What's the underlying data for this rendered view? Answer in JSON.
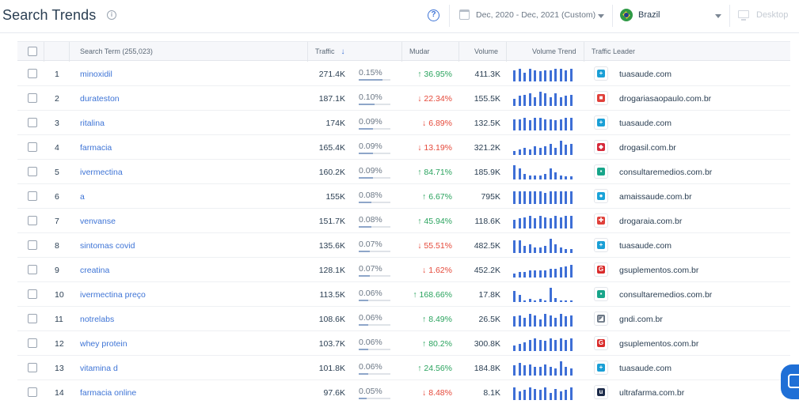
{
  "header": {
    "title": "Search Trends",
    "info_glyph": "i",
    "help_glyph": "?",
    "date_range": "Dec, 2020 - Dec, 2021 (Custom)",
    "country": "Brazil",
    "device": "Desktop"
  },
  "table": {
    "columns": {
      "term": "Search Term (255,023)",
      "traffic": "Traffic",
      "change": "Mudar",
      "volume": "Volume",
      "trend": "Volume Trend",
      "leader": "Traffic Leader"
    },
    "sort_glyph": "↓",
    "rows": [
      {
        "idx": "1",
        "term": "minoxidil",
        "traffic": "271.4K",
        "share": "0.15%",
        "share_frac": 0.75,
        "change": "↑ 36.95%",
        "dir": "up",
        "volume": "411.3K",
        "trend": [
          0.8,
          0.9,
          0.6,
          0.9,
          0.8,
          0.7,
          0.8,
          0.8,
          0.9,
          0.9,
          0.8,
          0.9
        ],
        "leader": "tuasaude.com",
        "leader_color": "#1a9fd6",
        "leader_glyph": "+"
      },
      {
        "idx": "2",
        "term": "durateston",
        "traffic": "187.1K",
        "share": "0.10%",
        "share_frac": 0.5,
        "change": "↓ 22.34%",
        "dir": "down",
        "volume": "155.5K",
        "trend": [
          0.5,
          0.7,
          0.8,
          0.9,
          0.6,
          1.0,
          0.9,
          0.6,
          0.9,
          0.6,
          0.7,
          0.8
        ],
        "leader": "drogariasaopaulo.com.br",
        "leader_color": "#e0403a",
        "leader_glyph": "■"
      },
      {
        "idx": "3",
        "term": "ritalina",
        "traffic": "174K",
        "share": "0.09%",
        "share_frac": 0.45,
        "change": "↓ 6.89%",
        "dir": "down",
        "volume": "132.5K",
        "trend": [
          0.8,
          0.8,
          0.9,
          0.7,
          0.9,
          0.9,
          0.8,
          0.8,
          0.7,
          0.8,
          0.9,
          0.9
        ],
        "leader": "tuasaude.com",
        "leader_color": "#1a9fd6",
        "leader_glyph": "+"
      },
      {
        "idx": "4",
        "term": "farmacia",
        "traffic": "165.4K",
        "share": "0.09%",
        "share_frac": 0.45,
        "change": "↓ 13.19%",
        "dir": "down",
        "volume": "321.2K",
        "trend": [
          0.3,
          0.4,
          0.5,
          0.4,
          0.6,
          0.5,
          0.6,
          0.8,
          0.5,
          1.0,
          0.7,
          0.8
        ],
        "leader": "drogasil.com.br",
        "leader_color": "#d6293a",
        "leader_glyph": "◆"
      },
      {
        "idx": "5",
        "term": "ivermectina",
        "traffic": "160.2K",
        "share": "0.09%",
        "share_frac": 0.45,
        "change": "↑ 84.71%",
        "dir": "up",
        "volume": "185.9K",
        "trend": [
          1.0,
          0.8,
          0.4,
          0.3,
          0.3,
          0.3,
          0.4,
          0.8,
          0.5,
          0.3,
          0.2,
          0.2
        ],
        "leader": "consultaremedios.com.br",
        "leader_color": "#17a58a",
        "leader_glyph": "▪"
      },
      {
        "idx": "6",
        "term": "a",
        "traffic": "155K",
        "share": "0.08%",
        "share_frac": 0.4,
        "change": "↑ 6.67%",
        "dir": "up",
        "volume": "795K",
        "trend": [
          0.9,
          0.9,
          0.9,
          0.9,
          0.9,
          0.9,
          0.8,
          0.9,
          0.9,
          0.9,
          0.9,
          0.9
        ],
        "leader": "amaissaude.com.br",
        "leader_color": "#1aa3d9",
        "leader_glyph": "●"
      },
      {
        "idx": "7",
        "term": "venvanse",
        "traffic": "151.7K",
        "share": "0.08%",
        "share_frac": 0.4,
        "change": "↑ 45.94%",
        "dir": "up",
        "volume": "118.6K",
        "trend": [
          0.6,
          0.7,
          0.8,
          0.9,
          0.7,
          0.9,
          0.8,
          0.7,
          0.9,
          0.8,
          0.9,
          0.9
        ],
        "leader": "drogaraia.com.br",
        "leader_color": "#e0403a",
        "leader_glyph": "✚"
      },
      {
        "idx": "8",
        "term": "sintomas covid",
        "traffic": "135.6K",
        "share": "0.07%",
        "share_frac": 0.35,
        "change": "↓ 55.51%",
        "dir": "down",
        "volume": "482.5K",
        "trend": [
          0.9,
          0.9,
          0.5,
          0.6,
          0.4,
          0.4,
          0.5,
          1.0,
          0.6,
          0.4,
          0.3,
          0.3
        ],
        "leader": "tuasaude.com",
        "leader_color": "#1a9fd6",
        "leader_glyph": "+"
      },
      {
        "idx": "9",
        "term": "creatina",
        "traffic": "128.1K",
        "share": "0.07%",
        "share_frac": 0.35,
        "change": "↓ 1.62%",
        "dir": "down",
        "volume": "452.2K",
        "trend": [
          0.3,
          0.4,
          0.4,
          0.5,
          0.5,
          0.5,
          0.5,
          0.6,
          0.6,
          0.7,
          0.8,
          0.9
        ],
        "leader": "gsuplementos.com.br",
        "leader_color": "#d92a2a",
        "leader_glyph": "G"
      },
      {
        "idx": "10",
        "term": "ivermectina preço",
        "traffic": "113.5K",
        "share": "0.06%",
        "share_frac": 0.3,
        "change": "↑ 168.66%",
        "dir": "up",
        "volume": "17.8K",
        "trend": [
          0.8,
          0.5,
          0.1,
          0.2,
          0.1,
          0.2,
          0.1,
          1.0,
          0.3,
          0.1,
          0.1,
          0.1
        ],
        "leader": "consultaremedios.com.br",
        "leader_color": "#17a58a",
        "leader_glyph": "▪"
      },
      {
        "idx": "11",
        "term": "notrelabs",
        "traffic": "108.6K",
        "share": "0.06%",
        "share_frac": 0.3,
        "change": "↑ 8.49%",
        "dir": "up",
        "volume": "26.5K",
        "trend": [
          0.7,
          0.8,
          0.6,
          0.9,
          0.8,
          0.5,
          0.9,
          0.8,
          0.6,
          0.9,
          0.7,
          0.8
        ],
        "leader": "gndi.com.br",
        "leader_color": "#6b7785",
        "leader_glyph": "◪"
      },
      {
        "idx": "12",
        "term": "whey protein",
        "traffic": "103.7K",
        "share": "0.06%",
        "share_frac": 0.3,
        "change": "↑ 80.2%",
        "dir": "up",
        "volume": "300.8K",
        "trend": [
          0.4,
          0.5,
          0.6,
          0.8,
          0.9,
          0.8,
          0.7,
          0.9,
          0.8,
          0.9,
          0.8,
          0.9
        ],
        "leader": "gsuplementos.com.br",
        "leader_color": "#d92a2a",
        "leader_glyph": "G"
      },
      {
        "idx": "13",
        "term": "vitamina d",
        "traffic": "101.8K",
        "share": "0.06%",
        "share_frac": 0.3,
        "change": "↑ 24.56%",
        "dir": "up",
        "volume": "184.8K",
        "trend": [
          0.7,
          0.9,
          0.7,
          0.8,
          0.6,
          0.6,
          0.8,
          0.6,
          0.5,
          1.0,
          0.6,
          0.5
        ],
        "leader": "tuasaude.com",
        "leader_color": "#1a9fd6",
        "leader_glyph": "+"
      },
      {
        "idx": "14",
        "term": "farmacia online",
        "traffic": "97.6K",
        "share": "0.05%",
        "share_frac": 0.25,
        "change": "↓ 8.48%",
        "dir": "down",
        "volume": "8.1K",
        "trend": [
          0.9,
          0.6,
          0.7,
          0.9,
          0.8,
          0.7,
          0.9,
          0.5,
          0.8,
          0.6,
          0.7,
          0.9
        ],
        "leader": "ultrafarma.com.br",
        "leader_color": "#1c2b4a",
        "leader_glyph": "u"
      }
    ]
  }
}
